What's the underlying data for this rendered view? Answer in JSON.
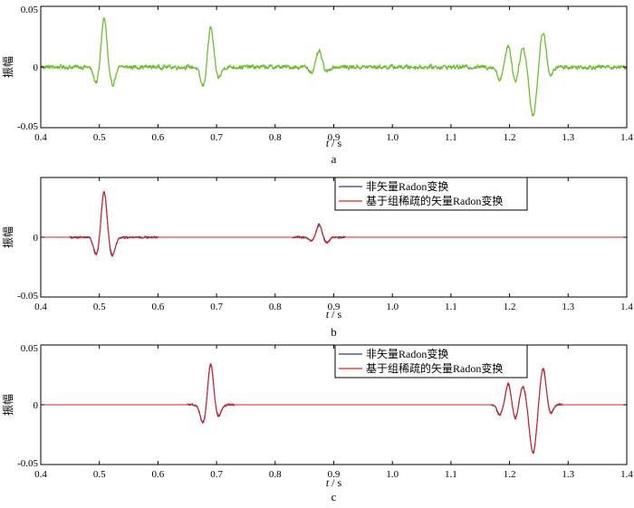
{
  "chart_data": [
    {
      "type": "line",
      "panel_label": "a",
      "xlabel_var": "t",
      "xlabel_unit": " / s",
      "ylabel": "振幅",
      "xlim": [
        0.4,
        1.4
      ],
      "ylim": [
        -0.05,
        0.05
      ],
      "x_ticks": [
        "0.4",
        "0.5",
        "0.6",
        "0.7",
        "0.8",
        "0.9",
        "1.0",
        "1.1",
        "1.2",
        "1.3",
        "1.4"
      ],
      "y_ticks": [
        "-0.05",
        "0",
        "0.05"
      ],
      "grid": false,
      "legend": [],
      "series": [
        {
          "color": "#6cbf2e",
          "noise": 0.0015,
          "wavelets": [
            {
              "t": 0.495,
              "a": -0.013,
              "w": 0.007
            },
            {
              "t": 0.508,
              "a": 0.041,
              "w": 0.0065
            },
            {
              "t": 0.522,
              "a": -0.015,
              "w": 0.007
            },
            {
              "t": 0.677,
              "a": -0.016,
              "w": 0.007
            },
            {
              "t": 0.69,
              "a": 0.033,
              "w": 0.0065
            },
            {
              "t": 0.703,
              "a": -0.009,
              "w": 0.007
            },
            {
              "t": 0.862,
              "a": -0.004,
              "w": 0.006
            },
            {
              "t": 0.875,
              "a": 0.013,
              "w": 0.006
            },
            {
              "t": 0.888,
              "a": -0.004,
              "w": 0.006
            },
            {
              "t": 1.183,
              "a": -0.01,
              "w": 0.006
            },
            {
              "t": 1.198,
              "a": 0.018,
              "w": 0.006
            },
            {
              "t": 1.21,
              "a": -0.012,
              "w": 0.006
            },
            {
              "t": 1.223,
              "a": 0.016,
              "w": 0.007
            },
            {
              "t": 1.24,
              "a": -0.04,
              "w": 0.008
            },
            {
              "t": 1.257,
              "a": 0.029,
              "w": 0.007
            },
            {
              "t": 1.27,
              "a": -0.008,
              "w": 0.006
            }
          ]
        }
      ]
    },
    {
      "type": "line",
      "panel_label": "b",
      "xlabel_var": "t",
      "xlabel_unit": " / s",
      "ylabel": "振幅",
      "xlim": [
        0.4,
        1.4
      ],
      "ylim": [
        -0.05,
        0.05
      ],
      "x_ticks": [
        "0.4",
        "0.5",
        "0.6",
        "0.7",
        "0.8",
        "0.9",
        "1.0",
        "1.1",
        "1.2",
        "1.3",
        "1.4"
      ],
      "y_ticks": [
        "-0.05",
        "0"
      ],
      "grid": false,
      "legend_position": "top-right",
      "legend": [
        "非矢量Radon变换",
        "基于组稀疏的矢量Radon变换"
      ],
      "series": [
        {
          "name": "非矢量Radon变换",
          "color": "#2b3a8f",
          "noise": 0.0004,
          "noise_range": [
            [
              0.45,
              0.6
            ],
            [
              0.83,
              0.92
            ]
          ],
          "wavelets": [
            {
              "t": 0.495,
              "a": -0.014,
              "w": 0.007
            },
            {
              "t": 0.508,
              "a": 0.038,
              "w": 0.0065
            },
            {
              "t": 0.522,
              "a": -0.015,
              "w": 0.007
            },
            {
              "t": 0.862,
              "a": -0.003,
              "w": 0.006
            },
            {
              "t": 0.875,
              "a": 0.011,
              "w": 0.006
            },
            {
              "t": 0.888,
              "a": -0.004,
              "w": 0.006
            }
          ]
        },
        {
          "name": "基于组稀疏的矢量Radon变换",
          "color": "#e02020",
          "noise": 0.0008,
          "noise_range": [
            [
              0.45,
              0.6
            ],
            [
              0.83,
              0.92
            ]
          ],
          "wavelets": [
            {
              "t": 0.495,
              "a": -0.015,
              "w": 0.007
            },
            {
              "t": 0.508,
              "a": 0.039,
              "w": 0.0065
            },
            {
              "t": 0.522,
              "a": -0.016,
              "w": 0.007
            },
            {
              "t": 0.862,
              "a": -0.003,
              "w": 0.006
            },
            {
              "t": 0.875,
              "a": 0.01,
              "w": 0.006
            },
            {
              "t": 0.888,
              "a": -0.005,
              "w": 0.006
            }
          ]
        }
      ]
    },
    {
      "type": "line",
      "panel_label": "c",
      "xlabel_var": "t",
      "xlabel_unit": " / s",
      "ylabel": "振幅",
      "xlim": [
        0.4,
        1.4
      ],
      "ylim": [
        -0.05,
        0.05
      ],
      "x_ticks": [
        "0.4",
        "0.5",
        "0.6",
        "0.7",
        "0.8",
        "0.9",
        "1.0",
        "1.1",
        "1.2",
        "1.3",
        "1.4"
      ],
      "y_ticks": [
        "-0.05",
        "0",
        "0.05"
      ],
      "grid": false,
      "legend_position": "top-right",
      "legend": [
        "非矢量Radon变换",
        "基于组稀疏的矢量Radon变换"
      ],
      "series": [
        {
          "name": "非矢量Radon变换",
          "color": "#2b3a8f",
          "noise": 0.0004,
          "noise_range": [
            [
              0.65,
              0.73
            ],
            [
              1.17,
              1.29
            ]
          ],
          "wavelets": [
            {
              "t": 0.677,
              "a": -0.015,
              "w": 0.007
            },
            {
              "t": 0.69,
              "a": 0.034,
              "w": 0.0065
            },
            {
              "t": 0.703,
              "a": -0.009,
              "w": 0.007
            },
            {
              "t": 1.183,
              "a": -0.008,
              "w": 0.006
            },
            {
              "t": 1.198,
              "a": 0.017,
              "w": 0.006
            },
            {
              "t": 1.21,
              "a": -0.011,
              "w": 0.006
            },
            {
              "t": 1.223,
              "a": 0.015,
              "w": 0.007
            },
            {
              "t": 1.24,
              "a": -0.04,
              "w": 0.008
            },
            {
              "t": 1.257,
              "a": 0.03,
              "w": 0.007
            },
            {
              "t": 1.27,
              "a": -0.007,
              "w": 0.006
            }
          ]
        },
        {
          "name": "基于组稀疏的矢量Radon变换",
          "color": "#e02020",
          "noise": 0.0008,
          "noise_range": [
            [
              0.65,
              0.73
            ],
            [
              1.17,
              1.29
            ]
          ],
          "wavelets": [
            {
              "t": 0.677,
              "a": -0.016,
              "w": 0.007
            },
            {
              "t": 0.69,
              "a": 0.035,
              "w": 0.0065
            },
            {
              "t": 0.703,
              "a": -0.01,
              "w": 0.007
            },
            {
              "t": 1.183,
              "a": -0.009,
              "w": 0.006
            },
            {
              "t": 1.198,
              "a": 0.018,
              "w": 0.006
            },
            {
              "t": 1.21,
              "a": -0.012,
              "w": 0.006
            },
            {
              "t": 1.223,
              "a": 0.016,
              "w": 0.007
            },
            {
              "t": 1.24,
              "a": -0.041,
              "w": 0.008
            },
            {
              "t": 1.257,
              "a": 0.031,
              "w": 0.007
            },
            {
              "t": 1.27,
              "a": -0.008,
              "w": 0.006
            }
          ]
        }
      ]
    }
  ]
}
